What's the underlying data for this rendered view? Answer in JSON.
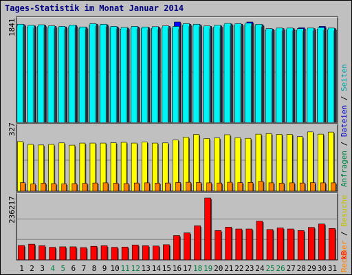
{
  "title": "Tages-Statistik im Monat Januar 2014",
  "colors": {
    "background": "#c0c0c0",
    "anfragen": "#00ffff",
    "dateien": "#0000ff",
    "seiten": "#00c0c0",
    "besuche": "#ffff00",
    "rechner": "#ff8000",
    "kb": "#ff0000",
    "weekday_label": "#000000",
    "weekend_label": "#008040",
    "title": "#000080"
  },
  "legend": {
    "top": [
      {
        "text": "Anfragen",
        "color": "#008040"
      },
      {
        "text": " / ",
        "color": "#000000"
      },
      {
        "text": "Dateien",
        "color": "#0000c0"
      },
      {
        "text": " / ",
        "color": "#000000"
      },
      {
        "text": "Seiten",
        "color": "#00a0a0"
      }
    ],
    "middle": [
      {
        "text": "Rechner",
        "color": "#ff8000"
      },
      {
        "text": " / ",
        "color": "#000000"
      },
      {
        "text": "Besuche",
        "color": "#c0c000"
      }
    ],
    "bottom": [
      {
        "text": "kB",
        "color": "#ff0000"
      }
    ]
  },
  "chart_data": [
    {
      "type": "bar",
      "panel": "top",
      "y_max_label": "1841",
      "ylim": [
        0,
        1841
      ],
      "categories": [
        "1",
        "2",
        "3",
        "4",
        "5",
        "6",
        "7",
        "8",
        "9",
        "10",
        "11",
        "12",
        "13",
        "14",
        "15",
        "16",
        "17",
        "18",
        "19",
        "20",
        "21",
        "22",
        "23",
        "24",
        "25",
        "26",
        "27",
        "28",
        "29",
        "30",
        "31"
      ],
      "weekend_days": [
        "4",
        "5",
        "11",
        "12",
        "18",
        "19",
        "25",
        "26"
      ],
      "series": [
        {
          "name": "Anfragen",
          "values": [
            1800,
            1780,
            1790,
            1770,
            1760,
            1785,
            1750,
            1810,
            1800,
            1760,
            1740,
            1760,
            1750,
            1755,
            1770,
            1760,
            1810,
            1800,
            1770,
            1780,
            1815,
            1810,
            1820,
            1800,
            1720,
            1730,
            1730,
            1720,
            1730,
            1740,
            1730
          ]
        },
        {
          "name": "Dateien",
          "values": [
            1790,
            1770,
            1780,
            1760,
            1750,
            1775,
            1740,
            1800,
            1790,
            1750,
            1730,
            1750,
            1740,
            1745,
            1760,
            1841,
            1800,
            1790,
            1760,
            1770,
            1805,
            1800,
            1841,
            1790,
            1710,
            1720,
            1720,
            1735,
            1720,
            1760,
            1720
          ]
        },
        {
          "name": "Seiten",
          "values": [
            1770,
            1750,
            1760,
            1740,
            1730,
            1755,
            1720,
            1780,
            1770,
            1730,
            1710,
            1730,
            1720,
            1725,
            1740,
            1730,
            1780,
            1770,
            1740,
            1750,
            1785,
            1780,
            1790,
            1770,
            1690,
            1700,
            1700,
            1690,
            1700,
            1710,
            1700
          ]
        }
      ]
    },
    {
      "type": "bar",
      "panel": "middle",
      "y_max_label": "327",
      "ylim": [
        0,
        327
      ],
      "categories": [
        "1",
        "2",
        "3",
        "4",
        "5",
        "6",
        "7",
        "8",
        "9",
        "10",
        "11",
        "12",
        "13",
        "14",
        "15",
        "16",
        "17",
        "18",
        "19",
        "20",
        "21",
        "22",
        "23",
        "24",
        "25",
        "26",
        "27",
        "28",
        "29",
        "30",
        "31"
      ],
      "series": [
        {
          "name": "Besuche",
          "values": [
            262,
            247,
            244,
            247,
            255,
            243,
            254,
            254,
            254,
            256,
            258,
            254,
            259,
            254,
            255,
            270,
            285,
            300,
            278,
            281,
            298,
            282,
            279,
            301,
            304,
            300,
            300,
            288,
            313,
            301,
            312
          ]
        },
        {
          "name": "Rechner",
          "values": [
            45,
            38,
            42,
            40,
            39,
            40,
            41,
            43,
            44,
            42,
            40,
            43,
            44,
            42,
            43,
            46,
            47,
            46,
            44,
            43,
            47,
            45,
            46,
            52,
            44,
            42,
            44,
            43,
            45,
            44,
            44
          ]
        }
      ]
    },
    {
      "type": "bar",
      "panel": "bottom",
      "y_max_label": "236217",
      "ylim": [
        0,
        236217
      ],
      "categories": [
        "1",
        "2",
        "3",
        "4",
        "5",
        "6",
        "7",
        "8",
        "9",
        "10",
        "11",
        "12",
        "13",
        "14",
        "15",
        "16",
        "17",
        "18",
        "19",
        "20",
        "21",
        "22",
        "23",
        "24",
        "25",
        "26",
        "27",
        "28",
        "29",
        "30",
        "31"
      ],
      "series": [
        {
          "name": "kB",
          "values": [
            55000,
            60000,
            54000,
            48000,
            50000,
            50000,
            47000,
            52000,
            54000,
            48000,
            49000,
            57000,
            54000,
            53000,
            58000,
            93000,
            103000,
            130000,
            236217,
            112000,
            125000,
            118000,
            118000,
            148000,
            116000,
            122000,
            118000,
            112000,
            124000,
            137000,
            120000
          ]
        }
      ]
    }
  ]
}
